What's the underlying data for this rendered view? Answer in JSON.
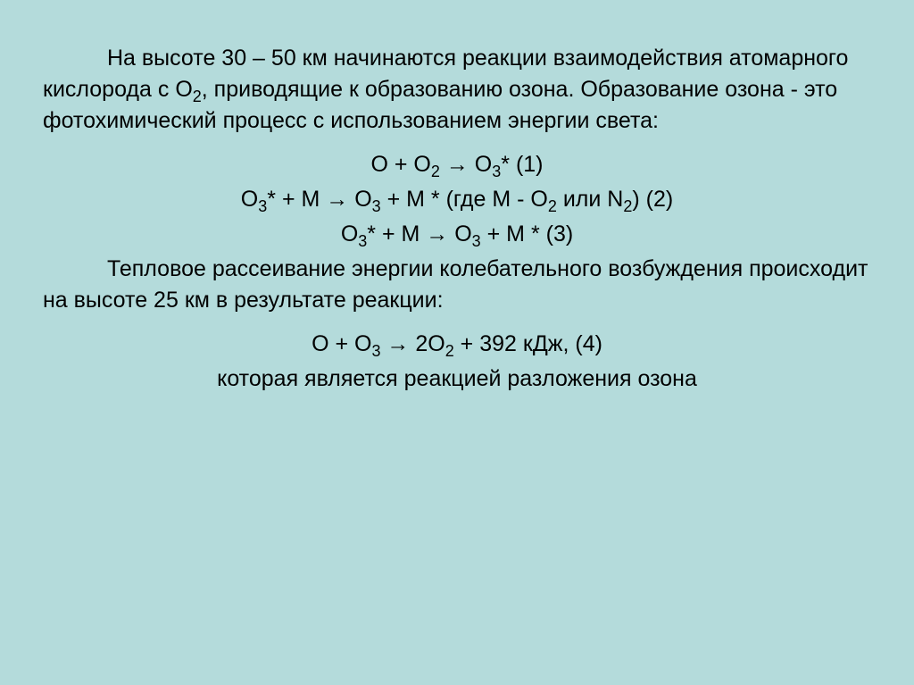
{
  "background_color": "#b4dbdb",
  "text_color": "#000000",
  "font_family": "Arial",
  "font_size_pt": 20,
  "paragraphs": {
    "p1_a": "На высоте 30 – 50 км начинаются реакции взаимодействия атомарного кислорода с O",
    "p1_b": ", приводящие к образованию озона. Образование озона - это фотохимический процесс с использованием энергии света:",
    "eq1_a": "O + O",
    "eq1_b": " → O",
    "eq1_c": "* (1)",
    "eq2_a": "O",
    "eq2_b": "* + M → O",
    "eq2_c": " + M * (где M - O",
    "eq2_d": " или N",
    "eq2_e": ")  (2)",
    "eq3_a": "O",
    "eq3_b": "* + M → O",
    "eq3_c": " + M *  (3)",
    "p2": "Тепловое рассеивание энергии колебательного возбуждения происходит на высоте 25 км в результате реакции:",
    "eq4_a": "O + O",
    "eq4_b": " → 2O",
    "eq4_c": " + 392 кДж, (4)",
    "p3": "которая является реакцией разложения озона"
  },
  "subs": {
    "s2": "2",
    "s3": "3"
  }
}
